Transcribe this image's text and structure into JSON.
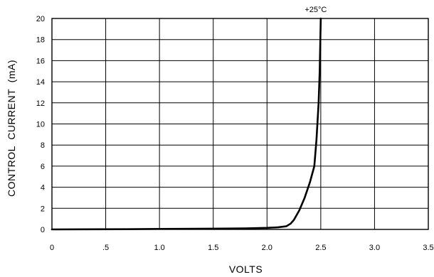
{
  "chart_data": {
    "type": "line",
    "title": "",
    "xlabel": "VOLTS",
    "ylabel": "CONTROL  CURRENT  (mA)",
    "x_tick_labels": [
      "0",
      ".5",
      "1.0",
      "1.5",
      "2.0",
      "2.5",
      "3.0",
      "3.5"
    ],
    "x_ticks": [
      0,
      0.5,
      1.0,
      1.5,
      2.0,
      2.5,
      3.0,
      3.5
    ],
    "y_tick_labels": [
      "0",
      "2",
      "4",
      "6",
      "8",
      "10",
      "12",
      "14",
      "16",
      "18",
      "20"
    ],
    "y_ticks": [
      0,
      2,
      4,
      6,
      8,
      10,
      12,
      14,
      16,
      18,
      20
    ],
    "xlim": [
      0,
      3.5
    ],
    "ylim": [
      0,
      20
    ],
    "grid": true,
    "annotation": "+25°C",
    "series": [
      {
        "name": "",
        "color": "#000000",
        "x": [
          0,
          0.7,
          1.0,
          1.5,
          1.8,
          2.0,
          2.1,
          2.18,
          2.22,
          2.25,
          2.3,
          2.35,
          2.4,
          2.44,
          2.46,
          2.48,
          2.49,
          2.495,
          2.5
        ],
        "y": [
          0,
          0.02,
          0.05,
          0.07,
          0.1,
          0.15,
          0.2,
          0.3,
          0.55,
          0.9,
          1.8,
          3.0,
          4.5,
          6.0,
          8.5,
          12.0,
          15.0,
          17.5,
          20.0
        ]
      }
    ]
  }
}
